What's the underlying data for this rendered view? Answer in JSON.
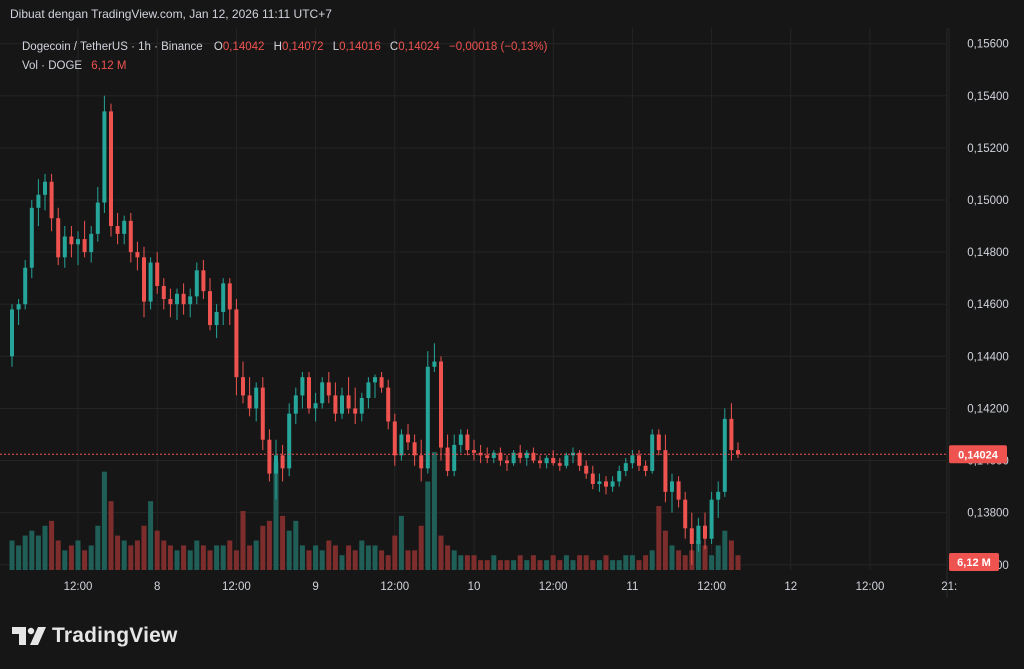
{
  "header": {
    "created_with": "Dibuat dengan TradingView.com, Jan 12, 2026 11:11 UTC+7"
  },
  "legend": {
    "symbol": "Dogecoin / TetherUS · 1h · Binance",
    "o_label": "O",
    "o_value": "0,14042",
    "h_label": "H",
    "h_value": "0,14072",
    "l_label": "L",
    "l_value": "0,14016",
    "c_label": "C",
    "c_value": "0,14024",
    "change": "−0,00018 (−0,13%)",
    "vol_label": "Vol · DOGE",
    "vol_value": "6,12 M"
  },
  "price_badge": "0,14024",
  "volume_badge": "6,12 M",
  "footer": {
    "brand": "TradingView"
  },
  "colors": {
    "up": "#26a69a",
    "down": "#ef5350",
    "up_vol": "#1f5f58",
    "down_vol": "#7c2d2c",
    "bg": "#161616",
    "grid": "#242424",
    "text": "#d1d4dc"
  },
  "chart_data": {
    "type": "candlestick",
    "y_ticks": [
      "0,15600",
      "0,15400",
      "0,15200",
      "0,15000",
      "0,14800",
      "0,14600",
      "0,14400",
      "0,14200",
      "0,14000",
      "0,13800",
      "0,13600"
    ],
    "y_tick_values": [
      0.156,
      0.154,
      0.152,
      0.15,
      0.148,
      0.146,
      0.144,
      0.142,
      0.14,
      0.138,
      0.136
    ],
    "ylim": [
      0.1358,
      0.1566
    ],
    "x_ticks": [
      {
        "label": "12:00",
        "i": 10
      },
      {
        "label": "8",
        "i": 22
      },
      {
        "label": "12:00",
        "i": 34
      },
      {
        "label": "9",
        "i": 46
      },
      {
        "label": "12:00",
        "i": 58
      },
      {
        "label": "10",
        "i": 70
      },
      {
        "label": "12:00",
        "i": 82
      },
      {
        "label": "11",
        "i": 94
      },
      {
        "label": "12:00",
        "i": 106
      },
      {
        "label": "12",
        "i": 118
      },
      {
        "label": "12:00",
        "i": 130
      },
      {
        "label": "21:",
        "i": 142
      }
    ],
    "last_close": 0.14024,
    "candles": [
      [
        0.144,
        0.146,
        0.1436,
        0.1458
      ],
      [
        0.1458,
        0.1462,
        0.1452,
        0.146
      ],
      [
        0.146,
        0.1477,
        0.1458,
        0.1474
      ],
      [
        0.1474,
        0.15,
        0.147,
        0.1497
      ],
      [
        0.1497,
        0.1508,
        0.149,
        0.1502
      ],
      [
        0.1502,
        0.151,
        0.1496,
        0.1507
      ],
      [
        0.1507,
        0.151,
        0.1488,
        0.1493
      ],
      [
        0.1493,
        0.1497,
        0.1475,
        0.1478
      ],
      [
        0.1478,
        0.149,
        0.1474,
        0.1486
      ],
      [
        0.1486,
        0.149,
        0.1478,
        0.1483
      ],
      [
        0.1483,
        0.1488,
        0.1475,
        0.1485
      ],
      [
        0.1485,
        0.1492,
        0.1478,
        0.148
      ],
      [
        0.148,
        0.149,
        0.1476,
        0.1487
      ],
      [
        0.1487,
        0.1505,
        0.1484,
        0.1499
      ],
      [
        0.1499,
        0.154,
        0.1495,
        0.1534
      ],
      [
        0.1534,
        0.1537,
        0.1486,
        0.149
      ],
      [
        0.149,
        0.1495,
        0.1483,
        0.1487
      ],
      [
        0.1487,
        0.1494,
        0.1483,
        0.1492
      ],
      [
        0.1492,
        0.1495,
        0.1476,
        0.148
      ],
      [
        0.148,
        0.1484,
        0.1473,
        0.1478
      ],
      [
        0.1478,
        0.1482,
        0.1455,
        0.1461
      ],
      [
        0.1461,
        0.1478,
        0.1458,
        0.1476
      ],
      [
        0.1476,
        0.148,
        0.1464,
        0.1467
      ],
      [
        0.1467,
        0.147,
        0.1458,
        0.1462
      ],
      [
        0.1462,
        0.1466,
        0.1455,
        0.146
      ],
      [
        0.146,
        0.1466,
        0.1454,
        0.1464
      ],
      [
        0.1464,
        0.1468,
        0.1456,
        0.146
      ],
      [
        0.146,
        0.1466,
        0.1455,
        0.1463
      ],
      [
        0.1463,
        0.1476,
        0.146,
        0.1473
      ],
      [
        0.1473,
        0.1477,
        0.1462,
        0.1465
      ],
      [
        0.1465,
        0.147,
        0.145,
        0.1452
      ],
      [
        0.1452,
        0.146,
        0.1447,
        0.1457
      ],
      [
        0.1457,
        0.147,
        0.1452,
        0.1468
      ],
      [
        0.1468,
        0.147,
        0.1452,
        0.1458
      ],
      [
        0.1458,
        0.1462,
        0.1425,
        0.1432
      ],
      [
        0.1432,
        0.1438,
        0.1422,
        0.1425
      ],
      [
        0.1425,
        0.1432,
        0.1417,
        0.142
      ],
      [
        0.142,
        0.143,
        0.1415,
        0.1428
      ],
      [
        0.1428,
        0.1432,
        0.1404,
        0.1408
      ],
      [
        0.1408,
        0.1412,
        0.1392,
        0.1395
      ],
      [
        0.1395,
        0.1408,
        0.1385,
        0.1402
      ],
      [
        0.1402,
        0.1406,
        0.1392,
        0.1397
      ],
      [
        0.1397,
        0.1422,
        0.1394,
        0.1418
      ],
      [
        0.1418,
        0.1428,
        0.1414,
        0.1425
      ],
      [
        0.1425,
        0.1434,
        0.142,
        0.1432
      ],
      [
        0.1432,
        0.1434,
        0.1418,
        0.142
      ],
      [
        0.142,
        0.1426,
        0.1415,
        0.1422
      ],
      [
        0.1422,
        0.1432,
        0.142,
        0.143
      ],
      [
        0.143,
        0.1434,
        0.1422,
        0.1425
      ],
      [
        0.1425,
        0.143,
        0.1415,
        0.1418
      ],
      [
        0.1418,
        0.1428,
        0.1416,
        0.1425
      ],
      [
        0.1425,
        0.1432,
        0.1418,
        0.142
      ],
      [
        0.142,
        0.1428,
        0.1414,
        0.1418
      ],
      [
        0.1418,
        0.1426,
        0.1415,
        0.1424
      ],
      [
        0.1424,
        0.1432,
        0.142,
        0.143
      ],
      [
        0.143,
        0.1433,
        0.1424,
        0.1432
      ],
      [
        0.1432,
        0.1434,
        0.1426,
        0.1428
      ],
      [
        0.1428,
        0.1431,
        0.1412,
        0.1415
      ],
      [
        0.1415,
        0.1418,
        0.1398,
        0.1402
      ],
      [
        0.1402,
        0.1412,
        0.14,
        0.141
      ],
      [
        0.141,
        0.1414,
        0.1404,
        0.1407
      ],
      [
        0.1407,
        0.141,
        0.1398,
        0.1402
      ],
      [
        0.1402,
        0.1408,
        0.1392,
        0.1397
      ],
      [
        0.1397,
        0.1442,
        0.1395,
        0.1436
      ],
      [
        0.1436,
        0.1445,
        0.1434,
        0.1438
      ],
      [
        0.1438,
        0.144,
        0.14,
        0.1405
      ],
      [
        0.1405,
        0.141,
        0.1394,
        0.1396
      ],
      [
        0.1396,
        0.141,
        0.1394,
        0.1406
      ],
      [
        0.1406,
        0.1412,
        0.1403,
        0.141
      ],
      [
        0.141,
        0.1412,
        0.1402,
        0.1404
      ],
      [
        0.1404,
        0.1408,
        0.14,
        0.1403
      ],
      [
        0.1403,
        0.1406,
        0.1399,
        0.1402
      ],
      [
        0.1402,
        0.1405,
        0.1399,
        0.1401
      ],
      [
        0.1401,
        0.1404,
        0.1399,
        0.1403
      ],
      [
        0.1403,
        0.1405,
        0.1398,
        0.14
      ],
      [
        0.14,
        0.1402,
        0.1396,
        0.1399
      ],
      [
        0.1399,
        0.1404,
        0.1398,
        0.1403
      ],
      [
        0.1403,
        0.1406,
        0.1399,
        0.1401
      ],
      [
        0.1401,
        0.1404,
        0.1398,
        0.1403
      ],
      [
        0.1403,
        0.1405,
        0.1399,
        0.14
      ],
      [
        0.14,
        0.1402,
        0.1397,
        0.1399
      ],
      [
        0.1399,
        0.1402,
        0.1397,
        0.1401
      ],
      [
        0.1401,
        0.1404,
        0.1398,
        0.1399
      ],
      [
        0.1399,
        0.1401,
        0.1396,
        0.1398
      ],
      [
        0.1398,
        0.1403,
        0.1397,
        0.1402
      ],
      [
        0.1402,
        0.1405,
        0.1399,
        0.1403
      ],
      [
        0.1403,
        0.1404,
        0.1396,
        0.1398
      ],
      [
        0.1398,
        0.14,
        0.1393,
        0.1395
      ],
      [
        0.1395,
        0.1398,
        0.1389,
        0.1391
      ],
      [
        0.1391,
        0.1395,
        0.1388,
        0.1392
      ],
      [
        0.1392,
        0.1394,
        0.1387,
        0.139
      ],
      [
        0.139,
        0.1394,
        0.1388,
        0.1392
      ],
      [
        0.1392,
        0.1398,
        0.139,
        0.1396
      ],
      [
        0.1396,
        0.1401,
        0.1394,
        0.1399
      ],
      [
        0.1399,
        0.1404,
        0.1397,
        0.1402
      ],
      [
        0.1402,
        0.1404,
        0.1396,
        0.1398
      ],
      [
        0.1398,
        0.14,
        0.1394,
        0.1396
      ],
      [
        0.1396,
        0.1412,
        0.1395,
        0.141
      ],
      [
        0.141,
        0.1412,
        0.1402,
        0.1404
      ],
      [
        0.1404,
        0.141,
        0.1384,
        0.1388
      ],
      [
        0.1388,
        0.1395,
        0.138,
        0.1392
      ],
      [
        0.1392,
        0.1394,
        0.1382,
        0.1385
      ],
      [
        0.1385,
        0.1388,
        0.137,
        0.1374
      ],
      [
        0.1374,
        0.138,
        0.136,
        0.1368
      ],
      [
        0.1368,
        0.1378,
        0.1365,
        0.1375
      ],
      [
        0.1375,
        0.138,
        0.1366,
        0.137
      ],
      [
        0.137,
        0.1388,
        0.1368,
        0.1385
      ],
      [
        0.1385,
        0.1392,
        0.1378,
        0.1388
      ],
      [
        0.1388,
        0.142,
        0.1386,
        0.1416
      ],
      [
        0.1416,
        0.1422,
        0.14,
        0.1404
      ],
      [
        0.1404,
        0.1407,
        0.1401,
        0.14024
      ]
    ],
    "volumes": [
      6,
      5,
      7,
      8,
      7,
      9,
      10,
      6,
      4,
      5,
      6,
      4,
      5,
      9,
      20,
      14,
      7,
      6,
      5,
      6,
      9,
      14,
      8,
      6,
      5,
      4,
      5,
      4,
      6,
      5,
      4,
      5,
      5,
      6,
      4,
      12,
      5,
      6,
      9,
      10,
      22,
      11,
      8,
      10,
      5,
      4,
      5,
      4,
      6,
      5,
      3,
      5,
      4,
      6,
      5,
      5,
      4,
      3,
      7,
      11,
      4,
      4,
      9,
      18,
      24,
      7,
      5,
      4,
      3,
      3,
      3,
      2,
      2,
      3,
      2,
      2,
      2,
      3,
      2,
      3,
      2,
      2,
      3,
      2,
      3,
      2,
      3,
      3,
      2,
      2,
      3,
      2,
      2,
      3,
      3,
      2,
      3,
      4,
      13,
      8,
      5,
      4,
      3,
      4,
      6,
      5,
      3,
      5,
      8,
      6,
      3,
      2
    ]
  }
}
